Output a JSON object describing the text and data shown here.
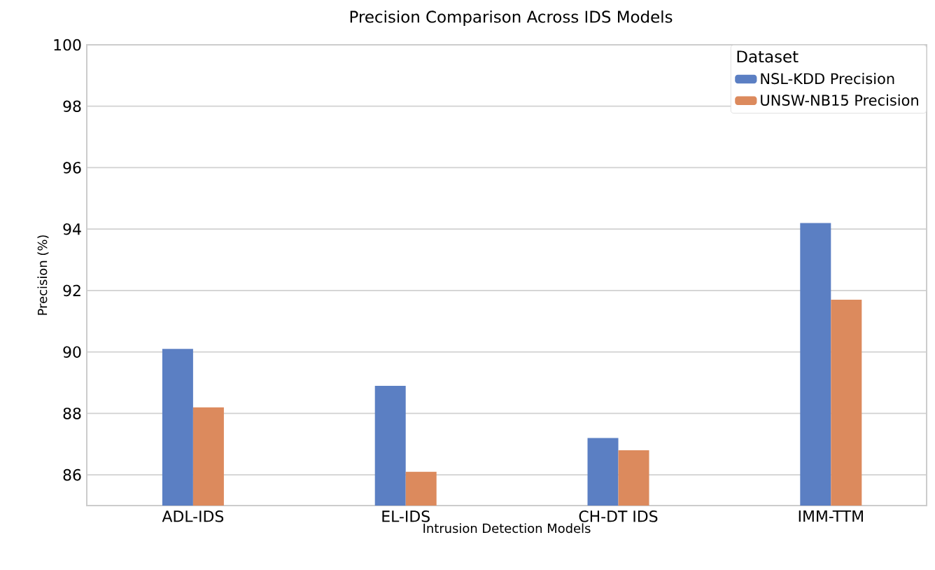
{
  "chart_data": {
    "type": "bar",
    "title": "Precision Comparison Across IDS Models",
    "xlabel": "Intrusion Detection Models",
    "ylabel": "Precision (%)",
    "legend_title": "Dataset",
    "categories": [
      "ADL-IDS",
      "EL-IDS",
      "CH-DT IDS",
      "IMM-TTM"
    ],
    "series": [
      {
        "name": "NSL-KDD Precision",
        "color": "#5b7fc3",
        "values": [
          90.1,
          88.9,
          87.2,
          94.2
        ]
      },
      {
        "name": "UNSW-NB15 Precision",
        "color": "#dc8a5d",
        "values": [
          88.2,
          86.1,
          86.8,
          91.7
        ]
      }
    ],
    "ylim": [
      85,
      100
    ],
    "yticks": [
      86,
      88,
      90,
      92,
      94,
      96,
      98,
      100
    ],
    "grid": "y",
    "legend": "top right"
  }
}
